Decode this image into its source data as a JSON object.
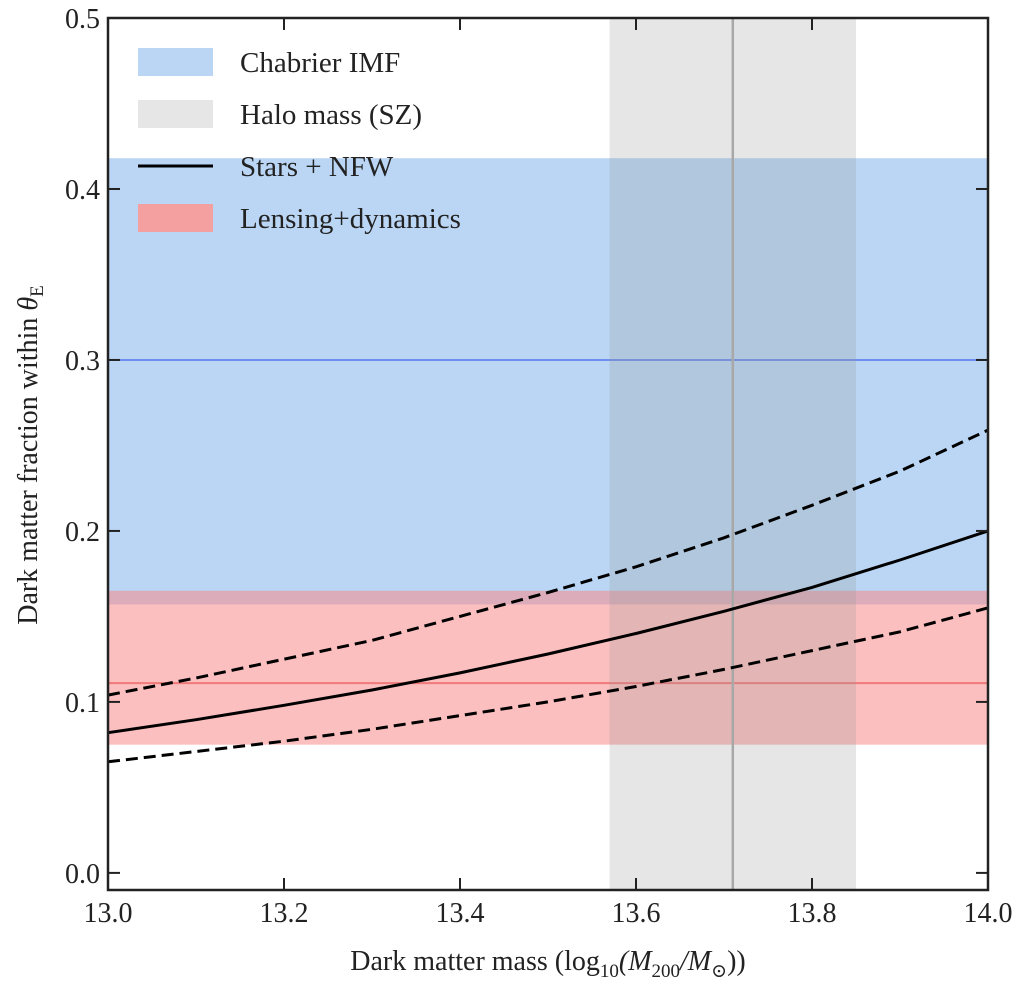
{
  "chart_data": {
    "type": "line",
    "title": "",
    "xlabel": "Dark matter mass (log10(M200/M⊙))",
    "xlabel_parts": {
      "prefix": "Dark matter mass (log",
      "sub1": "10",
      "mid": "(M",
      "sub2": "200",
      "slash": "/M",
      "sun": "⊙",
      "suffix": "))"
    },
    "ylabel": "Dark matter fraction within θE",
    "ylabel_parts": {
      "main": "Dark matter fraction within ",
      "theta": "θ",
      "sub": "E"
    },
    "xlim": [
      13.0,
      14.0
    ],
    "ylim": [
      -0.01,
      0.5
    ],
    "xticks": [
      "13.0",
      "13.2",
      "13.4",
      "13.6",
      "13.8",
      "14.0"
    ],
    "yticks": [
      "0.0",
      "0.1",
      "0.2",
      "0.3",
      "0.4",
      "0.5"
    ],
    "grid": false,
    "legend_position": "top-left",
    "legend": [
      {
        "label": "Chabrier IMF",
        "kind": "patch",
        "color": "#bad6f4"
      },
      {
        "label": "Halo mass (SZ)",
        "kind": "patch",
        "color": "#e6e6e6"
      },
      {
        "label": "Stars + NFW",
        "kind": "line",
        "color": "#000000"
      },
      {
        "label": "Lensing+dynamics",
        "kind": "patch",
        "color": "#f4a0a0"
      }
    ],
    "bands": {
      "chabrier_imf": {
        "y_low": 0.157,
        "y_high": 0.418,
        "center": 0.3,
        "color": "#bad6f4",
        "line_color": "#6e8ff0"
      },
      "lensing_dynamics": {
        "y_low": 0.075,
        "y_high": 0.165,
        "center": 0.111,
        "color": "#f88a8a",
        "line_color": "#f07a7a"
      },
      "halo_mass_sz": {
        "x_low": 13.57,
        "x_high": 13.85,
        "center": 13.71,
        "color": "#969696",
        "line_color": "#a8a8a8"
      }
    },
    "x": [
      13.0,
      13.1,
      13.2,
      13.3,
      13.4,
      13.5,
      13.6,
      13.7,
      13.8,
      13.9,
      14.0
    ],
    "series": [
      {
        "name": "Stars + NFW",
        "style": "solid",
        "values": [
          0.082,
          0.0896,
          0.098,
          0.107,
          0.117,
          0.128,
          0.14,
          0.153,
          0.167,
          0.183,
          0.2
        ]
      },
      {
        "name": "Stars + NFW upper",
        "style": "dashed",
        "values": [
          0.104,
          0.114,
          0.125,
          0.136,
          0.15,
          0.164,
          0.179,
          0.196,
          0.215,
          0.235,
          0.259
        ]
      },
      {
        "name": "Stars + NFW lower",
        "style": "dashed",
        "values": [
          0.065,
          0.071,
          0.077,
          0.084,
          0.092,
          0.1,
          0.109,
          0.119,
          0.13,
          0.141,
          0.155
        ]
      }
    ]
  }
}
